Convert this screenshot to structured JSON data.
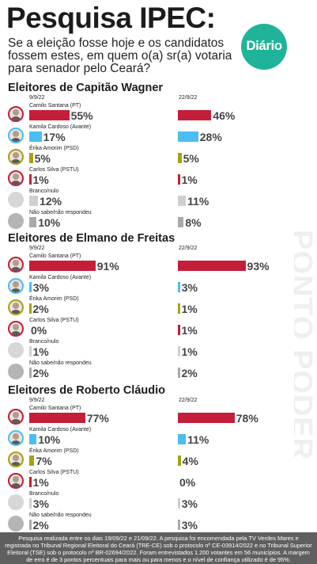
{
  "header": {
    "title": "Pesquisa IPEC:",
    "question": "Se a eleição fosse hoje e os candidatos fossem estes, em quem o(a) sr(a) votaria para senador pelo Ceará?",
    "logo_text": "Diário"
  },
  "watermark_text": "PONTO PODER",
  "footnote": "Pesquisa realizada entre os dias 19/09/22 e 21/09/22. A pesquisa foi encomendada pela TV Verdes Mares e registrada no Tribunal Regional Eleitoral do Ceará (TRE-CE) sob o protocolo nº CE-03914/2022 e no Tribunal Superior Eleitoral (TSE) sob o protocolo nº BR-02694/2022. Foram entrevistados 1.200 votantes em 56 municípios. A margem de erro é de 3 pontos percentuais para mais ou para menos e o nível de confiança utilizado é de 95%.",
  "colors": {
    "camilo": "#c41e3a",
    "kamila": "#4bbdf0",
    "erika": "#a8a012",
    "carlos": "#c41e3a",
    "branco": "#cfcfcf",
    "naosabe": "#a9a9a9",
    "logo": "#1fb49a",
    "footer": "#5f5f5f"
  },
  "chart_data": [
    {
      "type": "bar",
      "title": "Eleitores de Capitão Wagner",
      "categories": [
        "Camilo Santana (PT)",
        "Kamila Cardoso (Avante)",
        "Érika Amorim (PSD)",
        "Carlos Silva (PSTU)",
        "Branco/nulo",
        "Não sabe/não respondeu"
      ],
      "series": [
        {
          "name": "9/9/22",
          "values": [
            55,
            17,
            5,
            1,
            12,
            10
          ],
          "labels": [
            "55%",
            "17%",
            "5%",
            "1%",
            "12%",
            "10%"
          ]
        },
        {
          "name": "22/9/22",
          "values": [
            46,
            28,
            5,
            1,
            11,
            8
          ],
          "labels": [
            "46%",
            "28%",
            "5%",
            "1%",
            "11%",
            "8%"
          ]
        }
      ]
    },
    {
      "type": "bar",
      "title": "Eleitores de Elmano de Freitas",
      "categories": [
        "Camilo Santana (PT)",
        "Kamila Cardoso (Avante)",
        "Érika Amorim (PSD)",
        "Carlos Silva (PSTU)",
        "Branco/nulo",
        "Não sabe/não respondeu"
      ],
      "series": [
        {
          "name": "9/9/22",
          "values": [
            91,
            3,
            2,
            0,
            1,
            2
          ],
          "labels": [
            "91%",
            "3%",
            "2%",
            "0%",
            "1%",
            "2%"
          ]
        },
        {
          "name": "22/9/22",
          "values": [
            93,
            3,
            1,
            1,
            1,
            2
          ],
          "labels": [
            "93%",
            "3%",
            "1%",
            "1%",
            "1%",
            "2%"
          ]
        }
      ]
    },
    {
      "type": "bar",
      "title": "Eleitores de Roberto Cláudio",
      "categories": [
        "Camilo Santana (PT)",
        "Kamila Cardoso (Avante)",
        "Érika Amorim (PSD)",
        "Carlos Silva (PSTU)",
        "Branco/nulo",
        "Não sabe/não respondeu"
      ],
      "series": [
        {
          "name": "9/9/22",
          "values": [
            77,
            10,
            7,
            1,
            3,
            2
          ],
          "labels": [
            "77%",
            "10%",
            "7%",
            "1%",
            "3%",
            "2%"
          ]
        },
        {
          "name": "22/9/22",
          "values": [
            78,
            11,
            4,
            0,
            3,
            3
          ],
          "labels": [
            "78%",
            "11%",
            "4%",
            "0%",
            "3%",
            "3%"
          ]
        }
      ]
    }
  ]
}
